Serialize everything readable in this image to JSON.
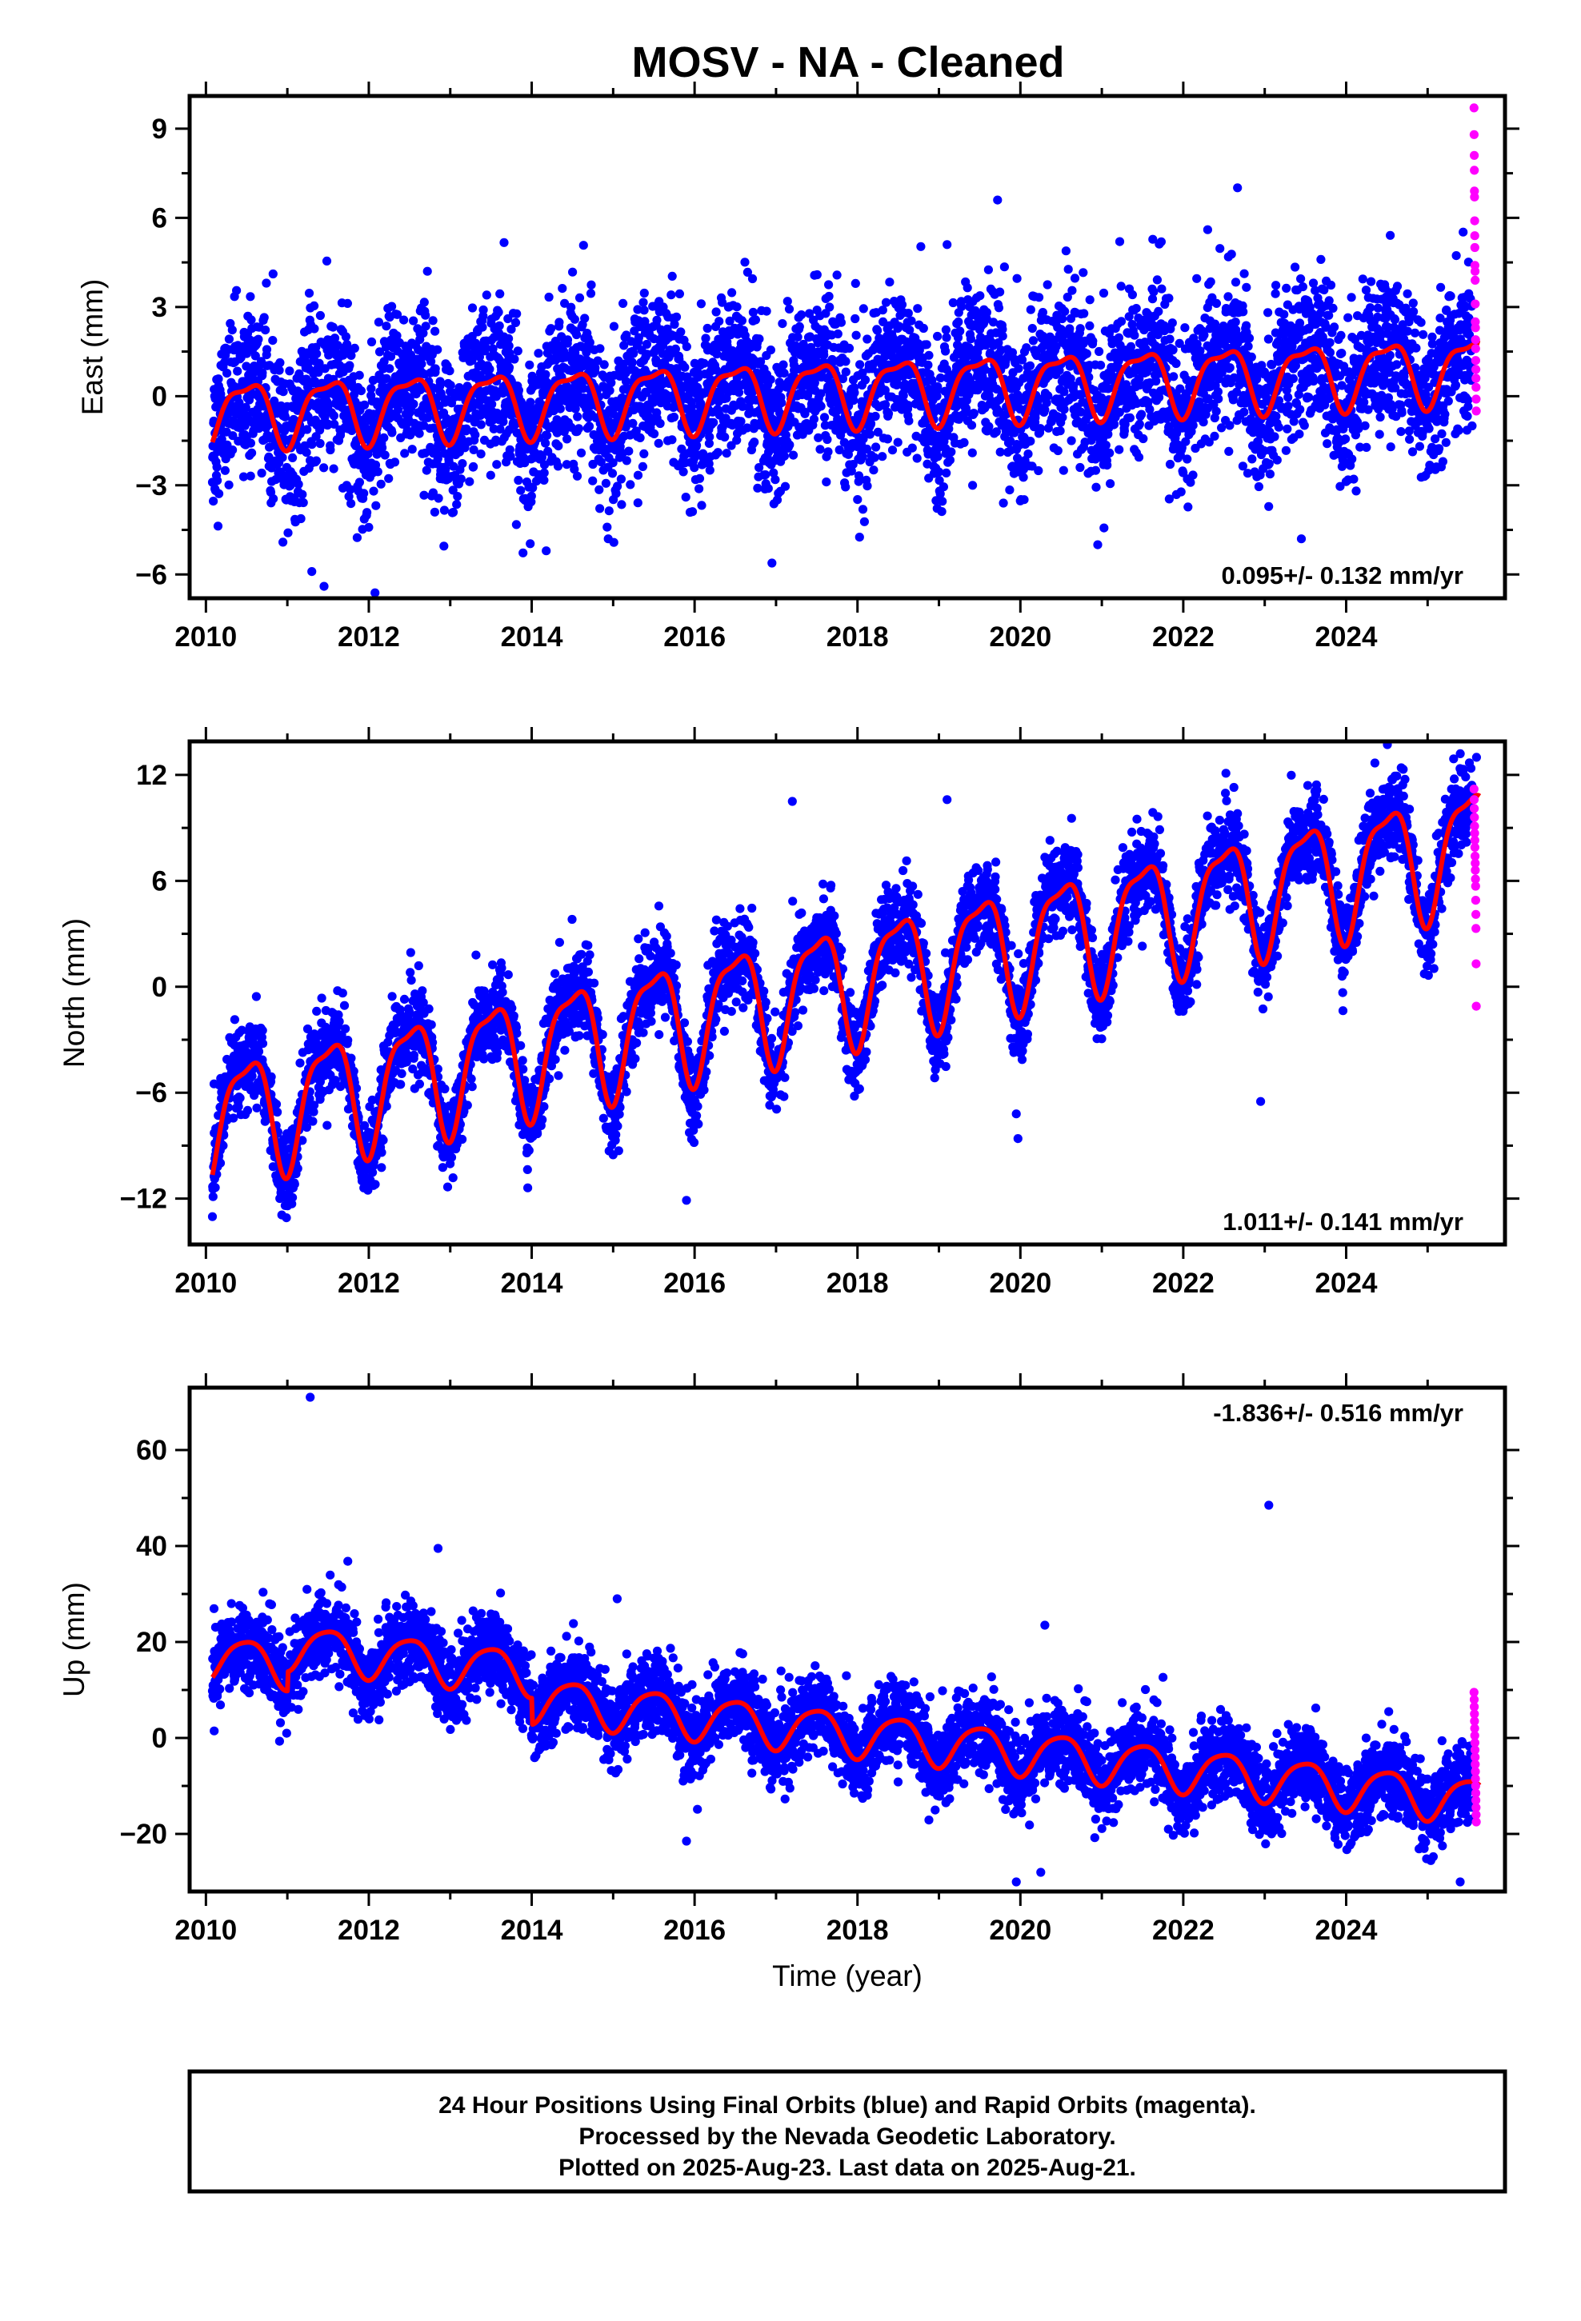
{
  "title": "MOSV  - NA - Cleaned",
  "colors": {
    "final_orbits": "#0000ff",
    "rapid_orbits": "#ff00ff",
    "model": "#ff0000",
    "frame": "#000000",
    "background": "#ffffff"
  },
  "footer": {
    "line1": "24 Hour Positions Using Final Orbits (blue) and Rapid Orbits (magenta).",
    "line2": "Processed by the Nevada Geodetic Laboratory.",
    "line3": "Plotted on 2025-Aug-23. Last data on 2025-Aug-21."
  },
  "chart_data": [
    {
      "type": "scatter",
      "ylabel": "East (mm)",
      "xlabel": "",
      "rate_text": "0.095+/- 0.132 mm/yr",
      "rate_position": "bottom-right",
      "xlim": [
        2009.8,
        2025.95
      ],
      "ylim": [
        -6.8,
        10.1
      ],
      "x_ticks": [
        2010,
        2012,
        2014,
        2016,
        2018,
        2020,
        2022,
        2024
      ],
      "x_tick_labels": [
        "2010",
        "2012",
        "2014",
        "2016",
        "2018",
        "2020",
        "2022",
        "2024"
      ],
      "y_ticks": [
        -6,
        -3,
        0,
        3,
        6,
        9
      ],
      "y_tick_labels": [
        "−6",
        "−3",
        "0",
        "3",
        "6",
        "9"
      ],
      "data_start": 2010.08,
      "data_end": 2025.55,
      "rapid_start": 2025.55,
      "rapid_end": 2025.64,
      "model": {
        "offset": -0.55,
        "rate": 0.095,
        "annual": 1.05,
        "semiannual": 0.35,
        "t0": 2010.0
      },
      "offsets": [],
      "scatter_sd": 1.3,
      "series": [
        {
          "name": "Final Orbits (blue)",
          "color": "#0000ff"
        },
        {
          "name": "Rapid Orbits (magenta)",
          "color": "#ff00ff"
        }
      ],
      "rapid_values": [
        9.7,
        8.8,
        8.1,
        7.6,
        6.9,
        6.7,
        5.9,
        5.4,
        5.0,
        4.4,
        4.2,
        3.9,
        3.1,
        2.5,
        2.3,
        1.9,
        1.6,
        1.2,
        0.9,
        0.6,
        0.3,
        -0.1,
        -0.5
      ],
      "outliers": [
        {
          "x": 2019.72,
          "y": 6.6
        },
        {
          "x": 2011.45,
          "y": -6.4
        },
        {
          "x": 2011.3,
          "y": -5.9
        },
        {
          "x": 2012.72,
          "y": 4.2
        },
        {
          "x": 2020.95,
          "y": -5.0
        },
        {
          "x": 2019.1,
          "y": 5.1
        },
        {
          "x": 2021.22,
          "y": 5.2
        },
        {
          "x": 2022.3,
          "y": 5.6
        },
        {
          "x": 2023.45,
          "y": -4.8
        }
      ]
    },
    {
      "type": "scatter",
      "ylabel": "North (mm)",
      "xlabel": "",
      "rate_text": "1.011+/- 0.141 mm/yr",
      "rate_position": "bottom-right",
      "xlim": [
        2009.8,
        2025.95
      ],
      "ylim": [
        -14.6,
        13.9
      ],
      "x_ticks": [
        2010,
        2012,
        2014,
        2016,
        2018,
        2020,
        2022,
        2024
      ],
      "x_tick_labels": [
        "2010",
        "2012",
        "2014",
        "2016",
        "2018",
        "2020",
        "2022",
        "2024"
      ],
      "y_ticks": [
        -12,
        -6,
        0,
        6,
        12
      ],
      "y_tick_labels": [
        "−12",
        "−6",
        "0",
        "6",
        "12"
      ],
      "data_start": 2010.08,
      "data_end": 2025.55,
      "rapid_start": 2025.55,
      "rapid_end": 2025.64,
      "model": {
        "offset": -7.6,
        "rate": 1.011,
        "annual": 3.3,
        "semiannual": 1.0,
        "t0": 2010.0
      },
      "offsets": [],
      "scatter_sd": 1.2,
      "series": [
        {
          "name": "Final Orbits (blue)",
          "color": "#0000ff"
        },
        {
          "name": "Rapid Orbits (magenta)",
          "color": "#ff00ff"
        }
      ],
      "rapid_values": [
        11.2,
        10.6,
        10.1,
        9.6,
        9.1,
        8.7,
        8.3,
        7.9,
        7.4,
        7.0,
        6.6,
        6.1,
        5.7,
        4.9,
        4.1,
        3.3,
        1.3,
        -1.1
      ],
      "outliers": [
        {
          "x": 2010.1,
          "y": -5.5
        },
        {
          "x": 2015.9,
          "y": -12.1
        },
        {
          "x": 2019.1,
          "y": 10.6
        },
        {
          "x": 2019.95,
          "y": -7.2
        },
        {
          "x": 2019.97,
          "y": -8.6
        },
        {
          "x": 2017.2,
          "y": 10.5
        },
        {
          "x": 2022.95,
          "y": -6.5
        },
        {
          "x": 2025.6,
          "y": 13.0
        }
      ]
    },
    {
      "type": "scatter",
      "ylabel": "Up (mm)",
      "xlabel": "Time (year)",
      "rate_text": "-1.836+/- 0.516 mm/yr",
      "rate_position": "top-right",
      "xlim": [
        2009.8,
        2025.95
      ],
      "ylim": [
        -32,
        73
      ],
      "x_ticks": [
        2010,
        2012,
        2014,
        2016,
        2018,
        2020,
        2022,
        2024
      ],
      "x_tick_labels": [
        "2010",
        "2012",
        "2014",
        "2016",
        "2018",
        "2020",
        "2022",
        "2024"
      ],
      "y_ticks": [
        -20,
        0,
        20,
        40,
        60
      ],
      "y_tick_labels": [
        "−20",
        "0",
        "20",
        "40",
        "60"
      ],
      "data_start": 2010.08,
      "data_end": 2025.55,
      "rapid_start": 2025.55,
      "rapid_end": 2025.64,
      "model": {
        "offset": 17.0,
        "rate": -1.836,
        "annual": 4.6,
        "semiannual": 0.8,
        "t0": 2010.0
      },
      "offsets": [
        {
          "x": 2011.0,
          "y": 4.0
        },
        {
          "x": 2014.0,
          "y": -5.5
        }
      ],
      "scatter_sd": 4.2,
      "series": [
        {
          "name": "Final Orbits (blue)",
          "color": "#0000ff"
        },
        {
          "name": "Rapid Orbits (magenta)",
          "color": "#ff00ff"
        }
      ],
      "rapid_values": [
        9.5,
        8.0,
        6.5,
        5.0,
        3.5,
        2.0,
        0.5,
        -1.0,
        -2.5,
        -4.0,
        -5.5,
        -7.0,
        -8.5,
        -10.0,
        -11.5,
        -13.0,
        -14.5,
        -16.0,
        -17.5
      ],
      "outliers": [
        {
          "x": 2011.28,
          "y": 71.0
        },
        {
          "x": 2023.05,
          "y": 48.5
        },
        {
          "x": 2012.85,
          "y": 39.5
        },
        {
          "x": 2020.3,
          "y": 23.5
        },
        {
          "x": 2015.05,
          "y": 29.0
        },
        {
          "x": 2019.95,
          "y": -30.0
        },
        {
          "x": 2020.25,
          "y": -28.0
        },
        {
          "x": 2025.4,
          "y": -30.0
        },
        {
          "x": 2015.9,
          "y": -21.5
        }
      ]
    }
  ]
}
